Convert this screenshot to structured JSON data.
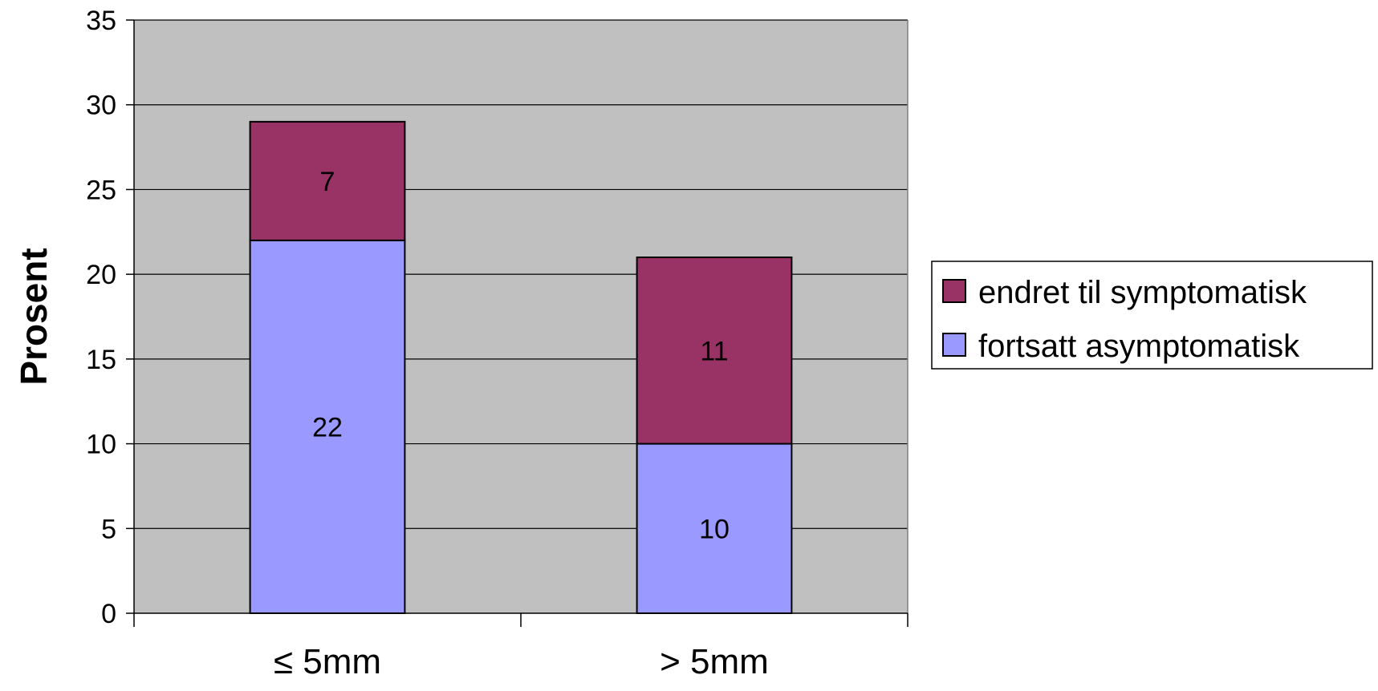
{
  "chart_data": {
    "type": "bar",
    "stacked": true,
    "categories": [
      "≤ 5mm",
      "> 5mm"
    ],
    "series": [
      {
        "name": "fortsatt asymptomatisk",
        "values": [
          22,
          10
        ],
        "color": "#9999ff"
      },
      {
        "name": "endret til symptomatisk",
        "values": [
          7,
          11
        ],
        "color": "#993366"
      }
    ],
    "title": "",
    "xlabel": "",
    "ylabel": "Prosent",
    "ylim": [
      0,
      35
    ],
    "yticks": [
      0,
      5,
      10,
      15,
      20,
      25,
      30,
      35
    ],
    "grid": true,
    "legend_position": "right",
    "legend_order": [
      "endret til symptomatisk",
      "fortsatt asymptomatisk"
    ],
    "plot_background": "#c0c0c0"
  }
}
